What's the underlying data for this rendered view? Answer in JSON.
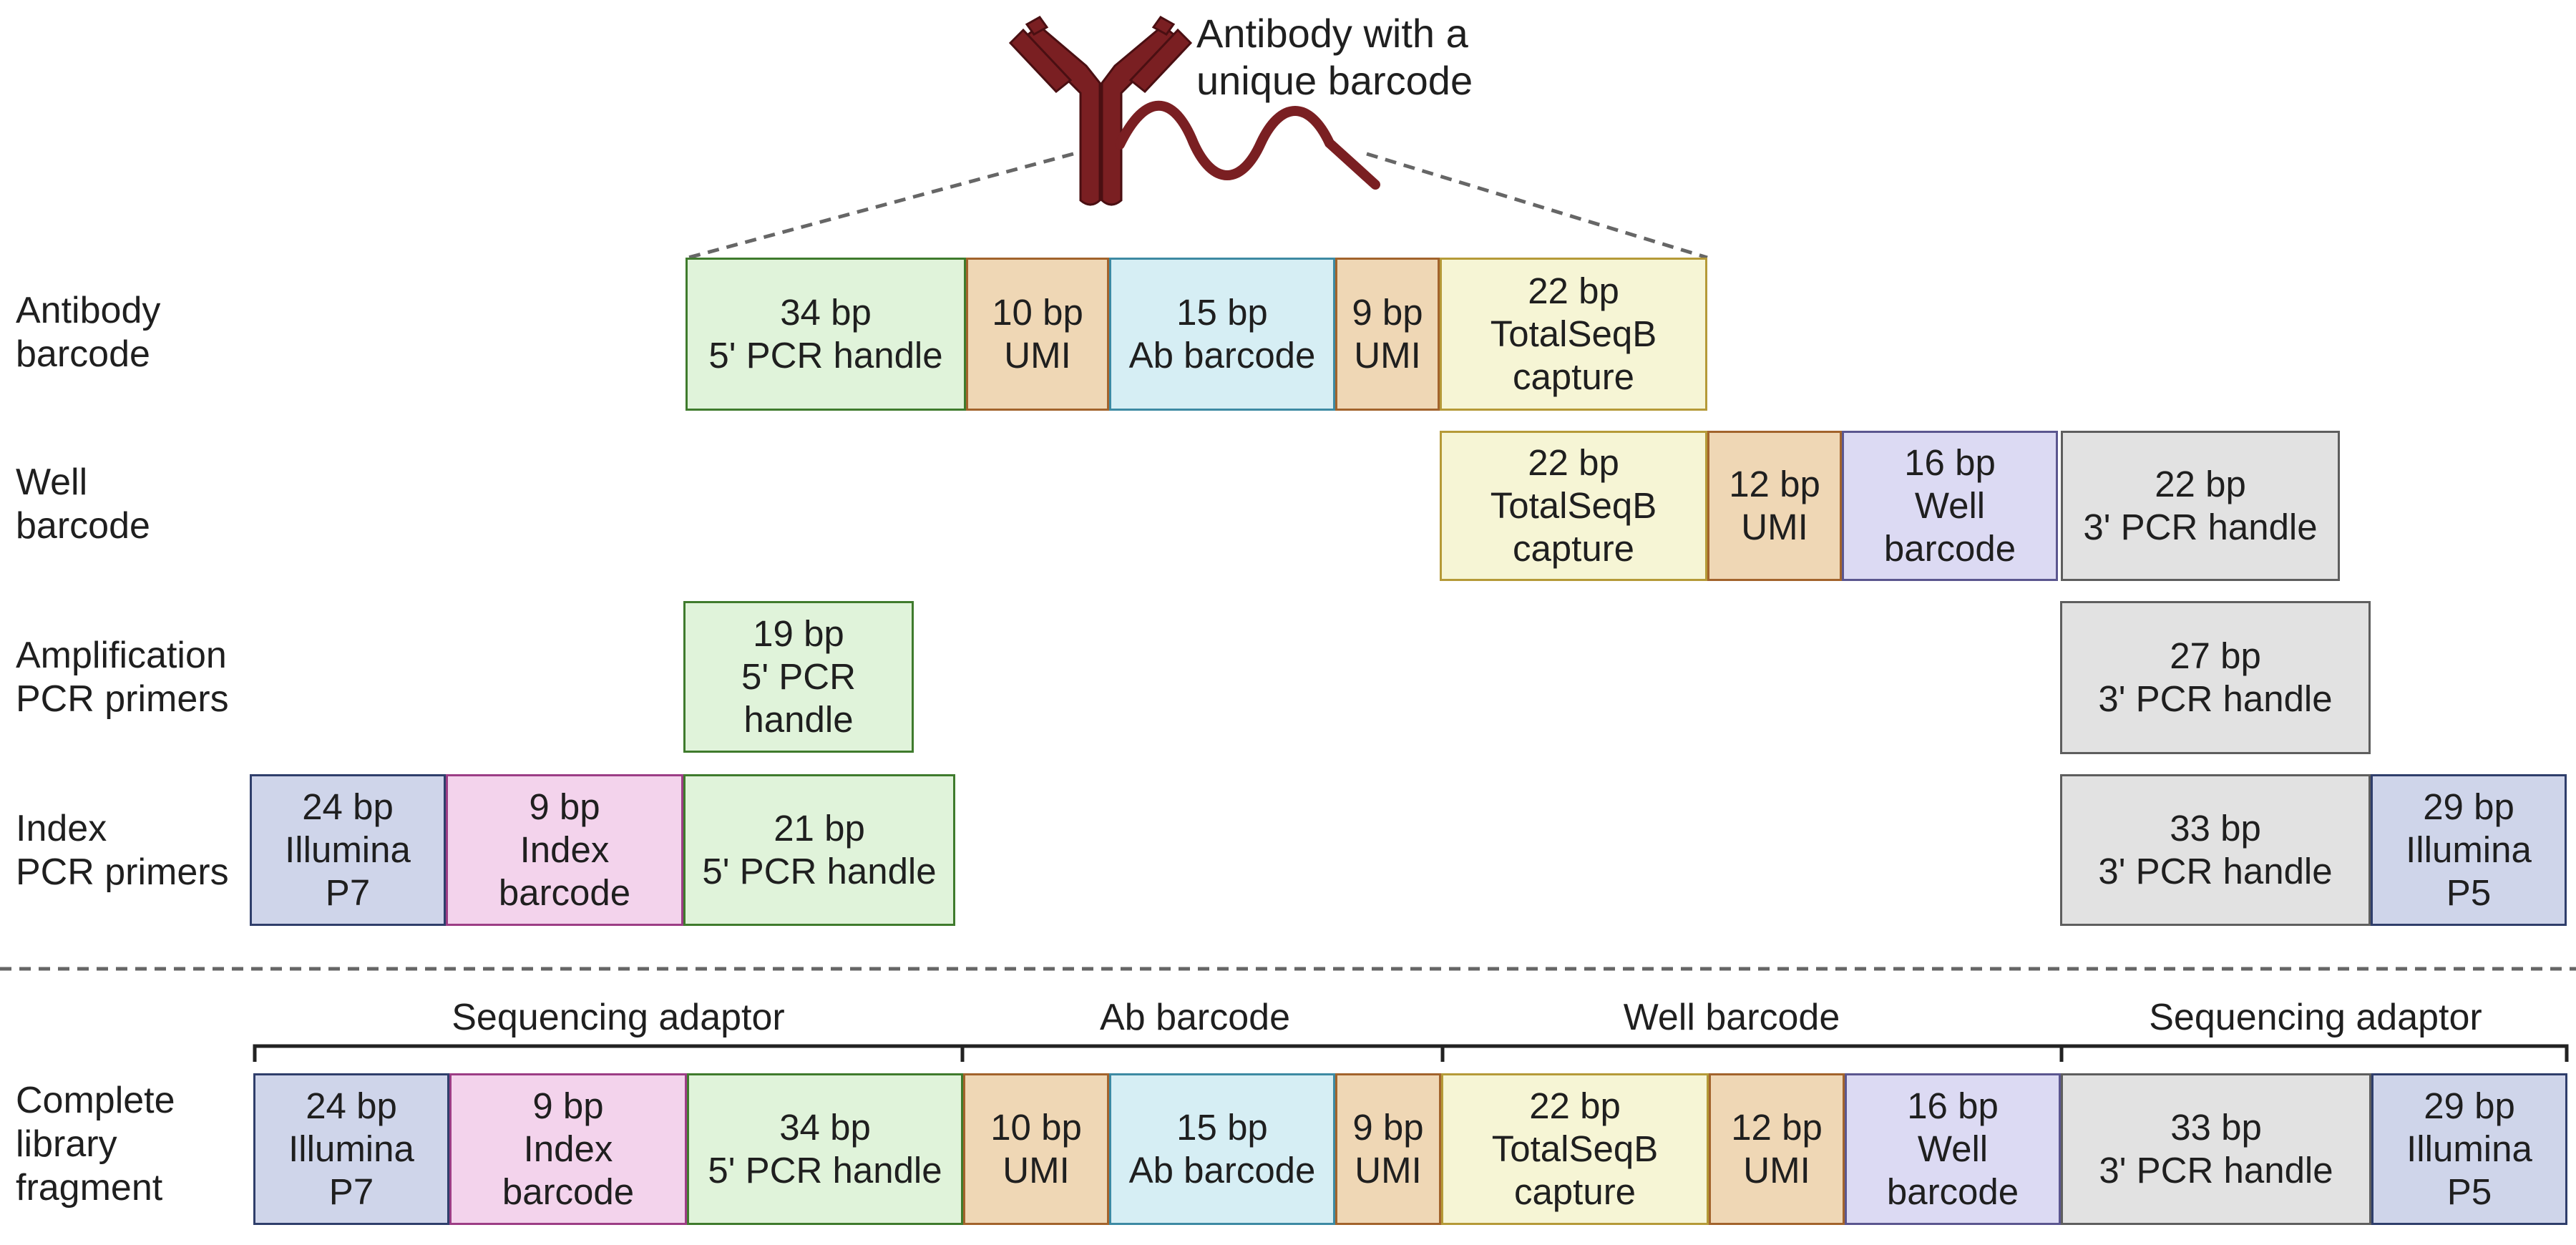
{
  "antibody": {
    "caption": "Antibody with a\nunique barcode",
    "icon": "antibody-icon",
    "color": "#7a1f22"
  },
  "colors": {
    "green": "#e0f3da",
    "orange": "#efd7b5",
    "blue": "#d6eef4",
    "yellow": "#f6f5d5",
    "purple": "#dcdaf3",
    "gray": "#e2e2e2",
    "navy": "#cfd5ea",
    "pink": "#f3d3ec"
  },
  "rows": {
    "antibody_barcode": {
      "label": "Antibody\nbarcode",
      "segments": [
        {
          "text": "34 bp\n5' PCR handle",
          "color": "green"
        },
        {
          "text": "10 bp\nUMI",
          "color": "orange"
        },
        {
          "text": "15 bp\nAb barcode",
          "color": "blue"
        },
        {
          "text": "9 bp\nUMI",
          "color": "orange"
        },
        {
          "text": "22 bp\nTotalSeqB\ncapture",
          "color": "yellow"
        }
      ]
    },
    "well_barcode": {
      "label": "Well\nbarcode",
      "segments": [
        {
          "text": "22 bp\nTotalSeqB\ncapture",
          "color": "yellow"
        },
        {
          "text": "12 bp\nUMI",
          "color": "orange"
        },
        {
          "text": "16 bp\nWell\nbarcode",
          "color": "purple"
        },
        {
          "text": "22 bp\n3' PCR handle",
          "color": "gray"
        }
      ]
    },
    "amplification": {
      "label": "Amplification\nPCR primers",
      "segments": [
        {
          "text": "19 bp\n5' PCR\nhandle",
          "color": "green"
        },
        {
          "text": "27 bp\n3' PCR handle",
          "color": "gray"
        }
      ]
    },
    "index": {
      "label": "Index\nPCR primers",
      "segments": [
        {
          "text": "24 bp\nIllumina\nP7",
          "color": "navy"
        },
        {
          "text": "9 bp\nIndex\nbarcode",
          "color": "pink"
        },
        {
          "text": "21 bp\n5' PCR handle",
          "color": "green"
        },
        {
          "text": "33 bp\n3' PCR handle",
          "color": "gray"
        },
        {
          "text": "29 bp\nIllumina\nP5",
          "color": "navy"
        }
      ]
    },
    "complete": {
      "label": "Complete\nlibrary\nfragment",
      "segments": [
        {
          "text": "24 bp\nIllumina\nP7",
          "color": "navy"
        },
        {
          "text": "9 bp\nIndex\nbarcode",
          "color": "pink"
        },
        {
          "text": "34 bp\n5' PCR handle",
          "color": "green"
        },
        {
          "text": "10 bp\nUMI",
          "color": "orange"
        },
        {
          "text": "15 bp\nAb barcode",
          "color": "blue"
        },
        {
          "text": "9 bp\nUMI",
          "color": "orange"
        },
        {
          "text": "22 bp\nTotalSeqB\ncapture",
          "color": "yellow"
        },
        {
          "text": "12 bp\nUMI",
          "color": "orange"
        },
        {
          "text": "16 bp\nWell\nbarcode",
          "color": "purple"
        },
        {
          "text": "33 bp\n3' PCR handle",
          "color": "gray"
        },
        {
          "text": "29 bp\nIllumina\nP5",
          "color": "navy"
        }
      ]
    }
  },
  "groups": [
    {
      "label": "Sequencing adaptor"
    },
    {
      "label": "Ab barcode"
    },
    {
      "label": "Well barcode"
    },
    {
      "label": "Sequencing adaptor"
    }
  ]
}
